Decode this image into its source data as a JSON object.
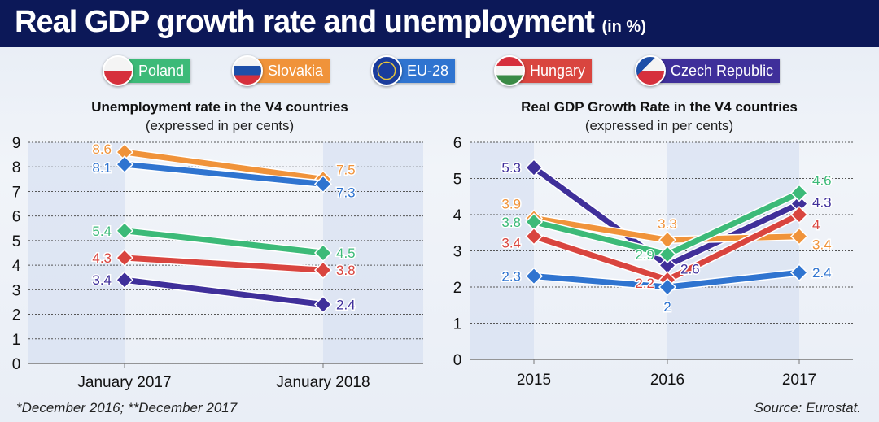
{
  "title": "Real GDP growth rate and unemployment",
  "title_suffix": "(in %)",
  "legend": [
    {
      "name": "Poland",
      "color": "#3cba78"
    },
    {
      "name": "Slovakia",
      "color": "#f0933a"
    },
    {
      "name": "EU-28",
      "color": "#2f74d0"
    },
    {
      "name": "Hungary",
      "color": "#d9453f"
    },
    {
      "name": "Czech Republic",
      "color": "#3f2f9a"
    }
  ],
  "chart_data": [
    {
      "type": "line",
      "title": "Unemployment rate in the V4 countries",
      "subtitle": "(expressed in per cents)",
      "categories": [
        "January 2017",
        "January 2018"
      ],
      "ylim": [
        0,
        9
      ],
      "yticks": [
        "0",
        "1",
        "2",
        "3",
        "4",
        "5",
        "6",
        "7",
        "8",
        "9"
      ],
      "grid": true,
      "series": [
        {
          "name": "Slovakia",
          "color": "#f0933a",
          "values": [
            8.6,
            7.5
          ],
          "labels": [
            "8.6",
            "7.5"
          ]
        },
        {
          "name": "EU-28",
          "color": "#2f74d0",
          "values": [
            8.1,
            7.3
          ],
          "labels": [
            "8.1",
            "7.3"
          ]
        },
        {
          "name": "Poland",
          "color": "#3cba78",
          "values": [
            5.4,
            4.5
          ],
          "labels": [
            "5.4",
            "4.5"
          ]
        },
        {
          "name": "Hungary",
          "color": "#d9453f",
          "values": [
            4.3,
            3.8
          ],
          "labels": [
            "4.3",
            "3.8"
          ]
        },
        {
          "name": "Czech Republic",
          "color": "#3f2f9a",
          "values": [
            3.4,
            2.4
          ],
          "labels": [
            "3.4",
            "2.4"
          ]
        }
      ]
    },
    {
      "type": "line",
      "title": "Real GDP Growth Rate in the V4 countries",
      "subtitle": "(expressed in per cents)",
      "categories": [
        "2015",
        "2016",
        "2017"
      ],
      "ylim": [
        0,
        6
      ],
      "yticks": [
        "0",
        "1",
        "2",
        "3",
        "4",
        "5",
        "6"
      ],
      "grid": true,
      "series": [
        {
          "name": "Czech Republic",
          "color": "#3f2f9a",
          "values": [
            5.3,
            2.6,
            4.3
          ],
          "labels": [
            "5.3",
            "2.6",
            "4.3"
          ]
        },
        {
          "name": "Slovakia",
          "color": "#f0933a",
          "values": [
            3.9,
            3.3,
            3.4
          ],
          "labels": [
            "3.9",
            "3.3",
            "3.4"
          ]
        },
        {
          "name": "Poland",
          "color": "#3cba78",
          "values": [
            3.8,
            2.9,
            4.6
          ],
          "labels": [
            "3.8",
            "2.9",
            "4.6"
          ]
        },
        {
          "name": "Hungary",
          "color": "#d9453f",
          "values": [
            3.4,
            2.2,
            4.0
          ],
          "labels": [
            "3.4",
            "2.2",
            "4"
          ]
        },
        {
          "name": "EU-28",
          "color": "#2f74d0",
          "values": [
            2.3,
            2.0,
            2.4
          ],
          "labels": [
            "2.3",
            "2",
            "2.4"
          ]
        }
      ]
    }
  ],
  "footnote": "*December 2016;  **December 2017",
  "source": "Source: Eurostat."
}
